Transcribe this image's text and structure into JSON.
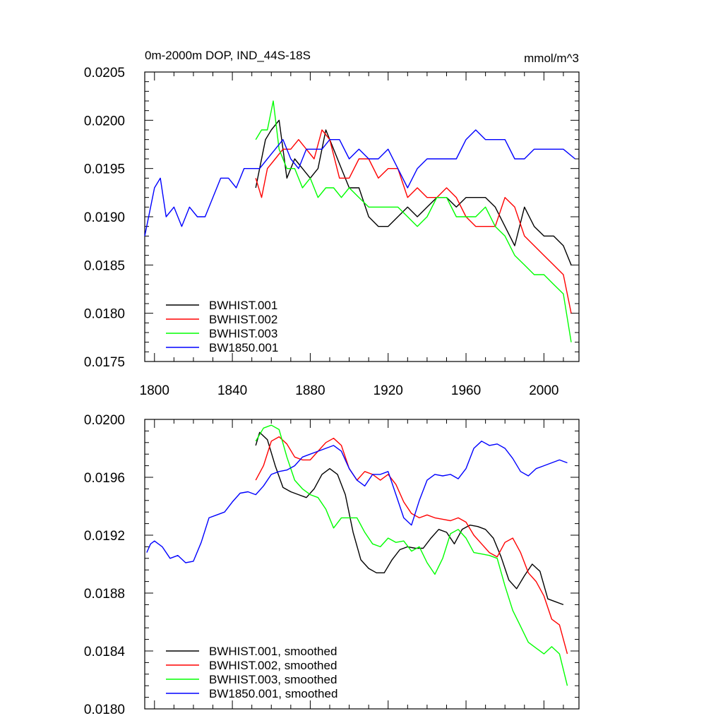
{
  "figure": {
    "background": "#ffffff"
  },
  "chart_data": [
    {
      "type": "line",
      "title": "0m-2000m DOP, IND_44S-18S",
      "units": "mmol/m^3",
      "xlim": [
        1795,
        2018
      ],
      "ylim": [
        0.0175,
        0.0205
      ],
      "xticks": [
        1800,
        1840,
        1880,
        1920,
        1960,
        2000
      ],
      "xtick_labels": [
        "1800",
        "1840",
        "1880",
        "1920",
        "1960",
        "2000"
      ],
      "yticks": [
        0.0175,
        0.018,
        0.0185,
        0.019,
        0.0195,
        0.02,
        0.0205
      ],
      "ytick_labels": [
        "0.0175",
        "0.0180",
        "0.0185",
        "0.0190",
        "0.0195",
        "0.0200",
        "0.0205"
      ],
      "grid": false,
      "legend_position": "bottom-left",
      "series": [
        {
          "name": "BWHIST.001",
          "color": "#000000",
          "x": [
            1852,
            1857,
            1860,
            1864,
            1868,
            1872,
            1876,
            1880,
            1884,
            1888,
            1892,
            1896,
            1900,
            1905,
            1910,
            1915,
            1920,
            1925,
            1930,
            1935,
            1940,
            1945,
            1950,
            1955,
            1960,
            1965,
            1970,
            1975,
            1980,
            1985,
            1990,
            1995,
            2000,
            2005,
            2010,
            2014
          ],
          "y": [
            0.0193,
            0.0198,
            0.0199,
            0.02,
            0.0194,
            0.0196,
            0.0195,
            0.0194,
            0.0195,
            0.0199,
            0.0197,
            0.0195,
            0.0193,
            0.0193,
            0.019,
            0.0189,
            0.0189,
            0.019,
            0.0191,
            0.019,
            0.0191,
            0.0192,
            0.0192,
            0.0191,
            0.0192,
            0.0192,
            0.0192,
            0.0191,
            0.0189,
            0.0187,
            0.0191,
            0.0189,
            0.0188,
            0.0188,
            0.0187,
            0.0185
          ]
        },
        {
          "name": "BWHIST.002",
          "color": "#ff0000",
          "x": [
            1852,
            1855,
            1858,
            1862,
            1866,
            1870,
            1874,
            1878,
            1882,
            1886,
            1890,
            1895,
            1900,
            1905,
            1910,
            1915,
            1920,
            1925,
            1930,
            1935,
            1940,
            1945,
            1950,
            1955,
            1960,
            1965,
            1970,
            1975,
            1980,
            1985,
            1990,
            1995,
            2000,
            2005,
            2010,
            2014
          ],
          "y": [
            0.0194,
            0.0192,
            0.0195,
            0.0196,
            0.0197,
            0.0197,
            0.0198,
            0.0197,
            0.0196,
            0.0199,
            0.0198,
            0.0194,
            0.0194,
            0.0196,
            0.0196,
            0.0194,
            0.0195,
            0.0195,
            0.0192,
            0.0193,
            0.0192,
            0.0192,
            0.0193,
            0.0192,
            0.019,
            0.0189,
            0.0189,
            0.0189,
            0.0192,
            0.0191,
            0.0188,
            0.0187,
            0.0186,
            0.0185,
            0.0184,
            0.018
          ]
        },
        {
          "name": "BWHIST.003",
          "color": "#00ff00",
          "x": [
            1852,
            1855,
            1858,
            1861,
            1864,
            1868,
            1872,
            1876,
            1880,
            1884,
            1888,
            1892,
            1896,
            1900,
            1905,
            1910,
            1915,
            1920,
            1925,
            1930,
            1935,
            1940,
            1945,
            1950,
            1955,
            1960,
            1965,
            1970,
            1975,
            1980,
            1985,
            1990,
            1995,
            2000,
            2005,
            2010,
            2014
          ],
          "y": [
            0.0198,
            0.0199,
            0.0199,
            0.0202,
            0.0197,
            0.0195,
            0.0195,
            0.0193,
            0.0194,
            0.0192,
            0.0193,
            0.0193,
            0.0192,
            0.0193,
            0.0192,
            0.0191,
            0.0191,
            0.0191,
            0.0191,
            0.019,
            0.0189,
            0.019,
            0.0192,
            0.0192,
            0.019,
            0.019,
            0.019,
            0.0191,
            0.0189,
            0.0188,
            0.0186,
            0.0185,
            0.0184,
            0.0184,
            0.0183,
            0.0182,
            0.0177
          ]
        },
        {
          "name": "BW1850.001",
          "color": "#0000ff",
          "x": [
            1795,
            1798,
            1800,
            1803,
            1806,
            1810,
            1814,
            1818,
            1822,
            1826,
            1830,
            1834,
            1838,
            1842,
            1846,
            1850,
            1854,
            1858,
            1862,
            1866,
            1870,
            1874,
            1878,
            1882,
            1886,
            1890,
            1895,
            1900,
            1905,
            1910,
            1915,
            1920,
            1925,
            1930,
            1935,
            1940,
            1945,
            1950,
            1955,
            1960,
            1965,
            1970,
            1975,
            1980,
            1985,
            1990,
            1995,
            2000,
            2005,
            2010,
            2016
          ],
          "y": [
            0.0188,
            0.0191,
            0.0193,
            0.0194,
            0.019,
            0.0191,
            0.0189,
            0.0191,
            0.019,
            0.019,
            0.0192,
            0.0194,
            0.0194,
            0.0193,
            0.0195,
            0.0195,
            0.0195,
            0.0196,
            0.0197,
            0.0198,
            0.0196,
            0.0195,
            0.0197,
            0.0197,
            0.0197,
            0.0198,
            0.0198,
            0.0196,
            0.0197,
            0.0196,
            0.0196,
            0.0197,
            0.0195,
            0.0193,
            0.0195,
            0.0196,
            0.0196,
            0.0196,
            0.0196,
            0.0198,
            0.0199,
            0.0198,
            0.0198,
            0.0198,
            0.0196,
            0.0196,
            0.0197,
            0.0197,
            0.0197,
            0.0197,
            0.0196
          ]
        }
      ]
    },
    {
      "type": "line",
      "title": "",
      "xlim": [
        1795,
        2018
      ],
      "ylim": [
        0.018,
        0.02
      ],
      "xticks": [
        1800,
        1840,
        1880,
        1920,
        1960,
        2000
      ],
      "xtick_labels": [],
      "yticks": [
        0.018,
        0.0184,
        0.0188,
        0.0192,
        0.0196,
        0.02
      ],
      "ytick_labels": [
        "0.0180",
        "0.0184",
        "0.0188",
        "0.0192",
        "0.0196",
        "0.0200"
      ],
      "grid": false,
      "legend_position": "bottom-left",
      "series": [
        {
          "name": "BWHIST.001, smoothed",
          "color": "#000000",
          "x": [
            1852,
            1854,
            1858,
            1862,
            1866,
            1870,
            1874,
            1878,
            1882,
            1886,
            1890,
            1894,
            1898,
            1902,
            1906,
            1910,
            1914,
            1918,
            1922,
            1926,
            1930,
            1934,
            1938,
            1942,
            1946,
            1950,
            1954,
            1958,
            1962,
            1966,
            1970,
            1974,
            1978,
            1982,
            1986,
            1990,
            1994,
            1998,
            2002,
            2006,
            2010
          ],
          "y": [
            0.01982,
            0.01991,
            0.01986,
            0.01968,
            0.01953,
            0.0195,
            0.01948,
            0.01946,
            0.01952,
            0.01962,
            0.01966,
            0.01962,
            0.01948,
            0.01922,
            0.01903,
            0.01897,
            0.01894,
            0.01894,
            0.01903,
            0.0191,
            0.01912,
            0.01911,
            0.01911,
            0.01918,
            0.01924,
            0.01922,
            0.01914,
            0.01924,
            0.01927,
            0.01926,
            0.01924,
            0.01918,
            0.01905,
            0.01889,
            0.01883,
            0.01892,
            0.019,
            0.01895,
            0.01876,
            0.01874,
            0.01872
          ]
        },
        {
          "name": "BWHIST.002, smoothed",
          "color": "#ff0000",
          "x": [
            1852,
            1856,
            1860,
            1864,
            1868,
            1872,
            1876,
            1880,
            1884,
            1888,
            1892,
            1896,
            1900,
            1904,
            1908,
            1912,
            1916,
            1920,
            1924,
            1928,
            1932,
            1936,
            1940,
            1944,
            1948,
            1952,
            1956,
            1960,
            1964,
            1968,
            1972,
            1976,
            1980,
            1984,
            1988,
            1992,
            1996,
            2000,
            2004,
            2008,
            2012
          ],
          "y": [
            0.01958,
            0.01968,
            0.01985,
            0.01988,
            0.01983,
            0.01974,
            0.01972,
            0.01972,
            0.01978,
            0.01984,
            0.01987,
            0.01982,
            0.01966,
            0.01958,
            0.01964,
            0.01962,
            0.01958,
            0.01962,
            0.01955,
            0.01943,
            0.01935,
            0.01932,
            0.01934,
            0.01932,
            0.01931,
            0.0193,
            0.01932,
            0.01929,
            0.0192,
            0.01914,
            0.01908,
            0.01905,
            0.01915,
            0.01918,
            0.01908,
            0.01894,
            0.01888,
            0.01878,
            0.01862,
            0.01858,
            0.01838
          ]
        },
        {
          "name": "BWHIST.003, smoothed",
          "color": "#00ff00",
          "x": [
            1852,
            1856,
            1860,
            1864,
            1868,
            1872,
            1876,
            1880,
            1884,
            1888,
            1892,
            1896,
            1900,
            1904,
            1908,
            1912,
            1916,
            1920,
            1924,
            1928,
            1932,
            1936,
            1940,
            1944,
            1948,
            1952,
            1956,
            1960,
            1964,
            1968,
            1972,
            1976,
            1980,
            1984,
            1988,
            1992,
            1996,
            2000,
            2004,
            2008,
            2012
          ],
          "y": [
            0.01985,
            0.01994,
            0.01996,
            0.01993,
            0.01974,
            0.01958,
            0.01952,
            0.01948,
            0.01946,
            0.01938,
            0.01925,
            0.01932,
            0.01932,
            0.01932,
            0.01922,
            0.01914,
            0.01912,
            0.01918,
            0.01915,
            0.01916,
            0.01909,
            0.01912,
            0.01901,
            0.01893,
            0.01904,
            0.01921,
            0.01924,
            0.01918,
            0.01908,
            0.01907,
            0.01906,
            0.01904,
            0.01885,
            0.01868,
            0.01857,
            0.01846,
            0.01842,
            0.01838,
            0.01843,
            0.01838,
            0.01816
          ]
        },
        {
          "name": "BW1850.001, smoothed",
          "color": "#0000ff",
          "x": [
            1796,
            1798,
            1800,
            1804,
            1808,
            1812,
            1816,
            1820,
            1824,
            1828,
            1832,
            1836,
            1840,
            1844,
            1848,
            1852,
            1856,
            1860,
            1864,
            1868,
            1872,
            1876,
            1880,
            1884,
            1888,
            1892,
            1896,
            1900,
            1904,
            1908,
            1912,
            1916,
            1920,
            1924,
            1928,
            1932,
            1936,
            1940,
            1944,
            1948,
            1952,
            1956,
            1960,
            1964,
            1968,
            1972,
            1976,
            1980,
            1984,
            1988,
            1992,
            1996,
            2000,
            2004,
            2008,
            2012
          ],
          "y": [
            0.01908,
            0.01914,
            0.01916,
            0.01912,
            0.01904,
            0.01906,
            0.01901,
            0.01902,
            0.01915,
            0.01932,
            0.01934,
            0.01936,
            0.01943,
            0.01949,
            0.0195,
            0.01948,
            0.01954,
            0.01962,
            0.01964,
            0.01965,
            0.01968,
            0.01974,
            0.01976,
            0.01978,
            0.0198,
            0.01982,
            0.01978,
            0.01966,
            0.01958,
            0.01954,
            0.01962,
            0.01962,
            0.01964,
            0.01948,
            0.01932,
            0.01927,
            0.01944,
            0.01958,
            0.01962,
            0.01961,
            0.01962,
            0.01959,
            0.01966,
            0.0198,
            0.01985,
            0.01982,
            0.01983,
            0.0198,
            0.01973,
            0.01964,
            0.01961,
            0.01966,
            0.01968,
            0.0197,
            0.01972,
            0.0197
          ]
        }
      ]
    }
  ]
}
